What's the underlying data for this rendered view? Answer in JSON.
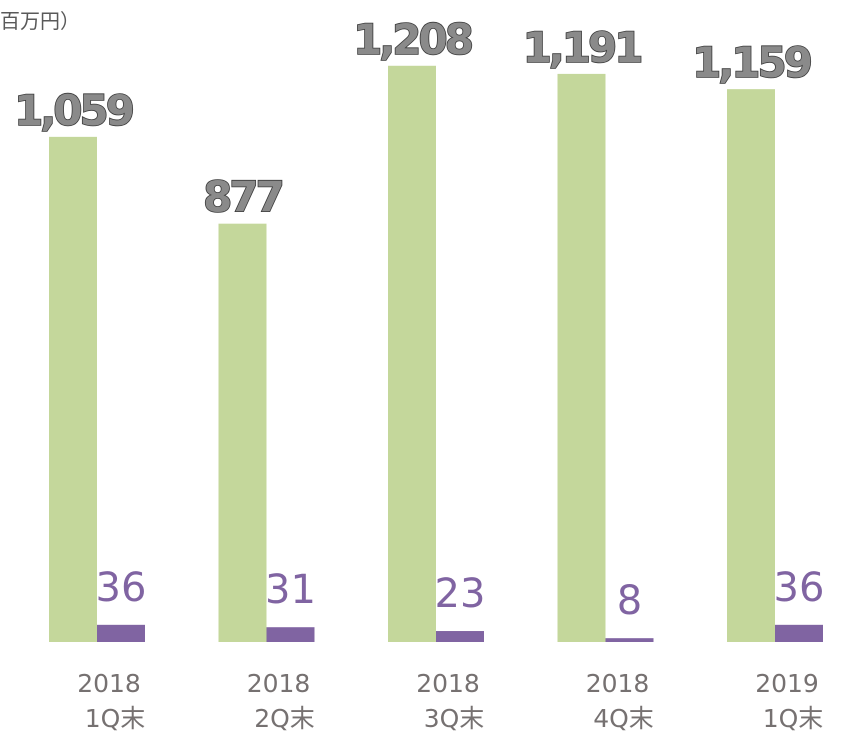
{
  "chart_data": {
    "type": "bar",
    "unit_label": "百万円）",
    "categories": [
      [
        "2018",
        "1Q末"
      ],
      [
        "2018",
        "2Q末"
      ],
      [
        "2018",
        "3Q末"
      ],
      [
        "2018",
        "4Q末"
      ],
      [
        "2019",
        "1Q末"
      ]
    ],
    "series": [
      {
        "color": "#c4d79b",
        "values": [
          1059,
          877,
          1208,
          1191,
          1159
        ],
        "value_labels": [
          "1,059",
          "877",
          "1,208",
          "1,191",
          "1,159"
        ]
      },
      {
        "color": "#8064a2",
        "values": [
          36,
          31,
          23,
          8,
          36
        ]
      }
    ]
  }
}
